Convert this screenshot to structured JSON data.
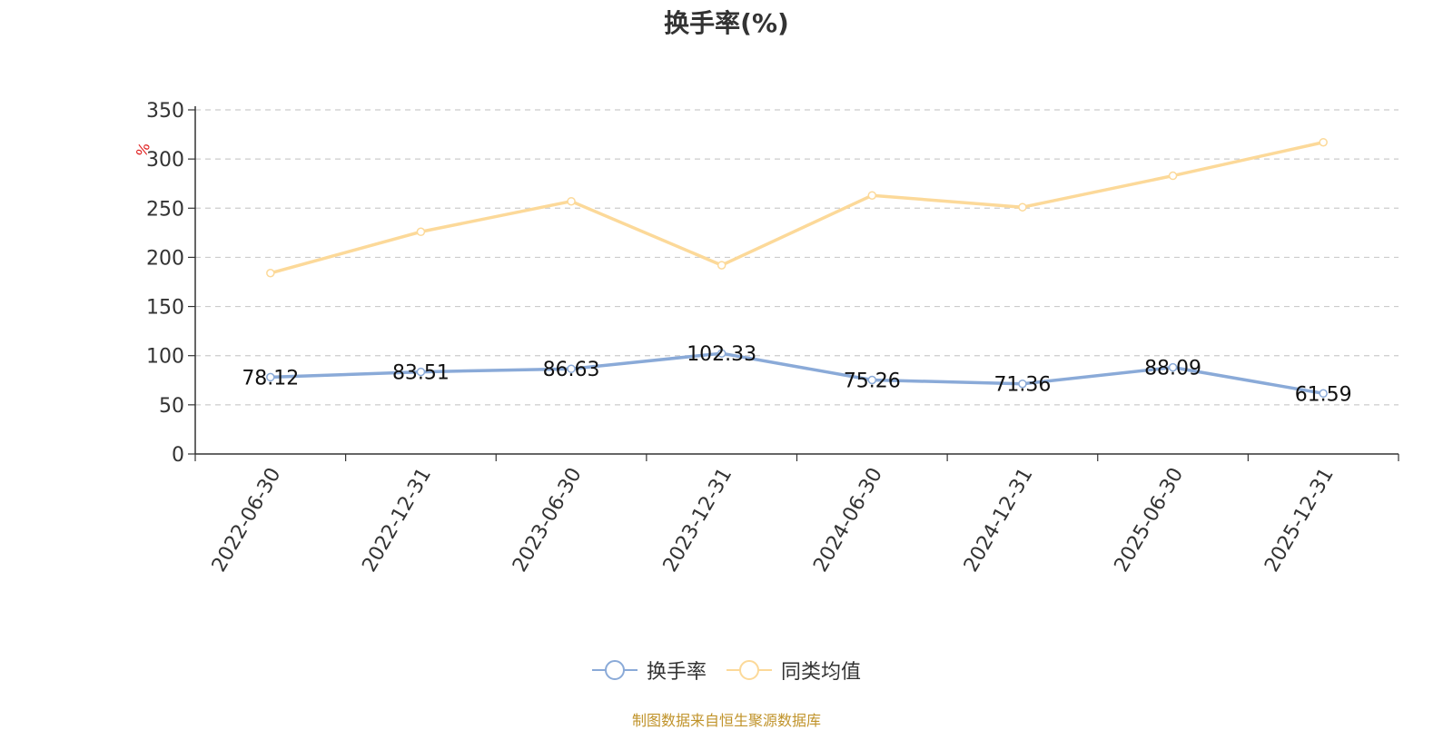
{
  "title": "换手率(%)",
  "source": "制图数据来自恒生聚源数据库",
  "colors": {
    "series_a": "#8aaad8",
    "series_b": "#fcd999",
    "unit": "#e02020",
    "source": "#c0932a"
  },
  "chart_data": {
    "type": "line",
    "x": [
      "2022-06-30",
      "2022-12-31",
      "2023-06-30",
      "2023-12-31",
      "2024-06-30",
      "2024-12-31",
      "2025-06-30",
      "2025-12-31"
    ],
    "series": [
      {
        "name": "换手率",
        "values": [
          78.12,
          83.51,
          86.63,
          102.33,
          75.26,
          71.36,
          88.09,
          61.59
        ],
        "data_labels": [
          "78.12",
          "83.51",
          "86.63",
          "102.33",
          "75.26",
          "71.36",
          "88.09",
          "61.59"
        ]
      },
      {
        "name": "同类均值",
        "values": [
          184,
          226,
          257,
          192,
          263,
          251,
          283,
          317
        ]
      }
    ],
    "ylabel": "%",
    "ylim": [
      0,
      350
    ],
    "yticks": [
      0,
      50,
      100,
      150,
      200,
      250,
      300,
      350
    ],
    "grid": true,
    "legend": "bottom-center"
  }
}
